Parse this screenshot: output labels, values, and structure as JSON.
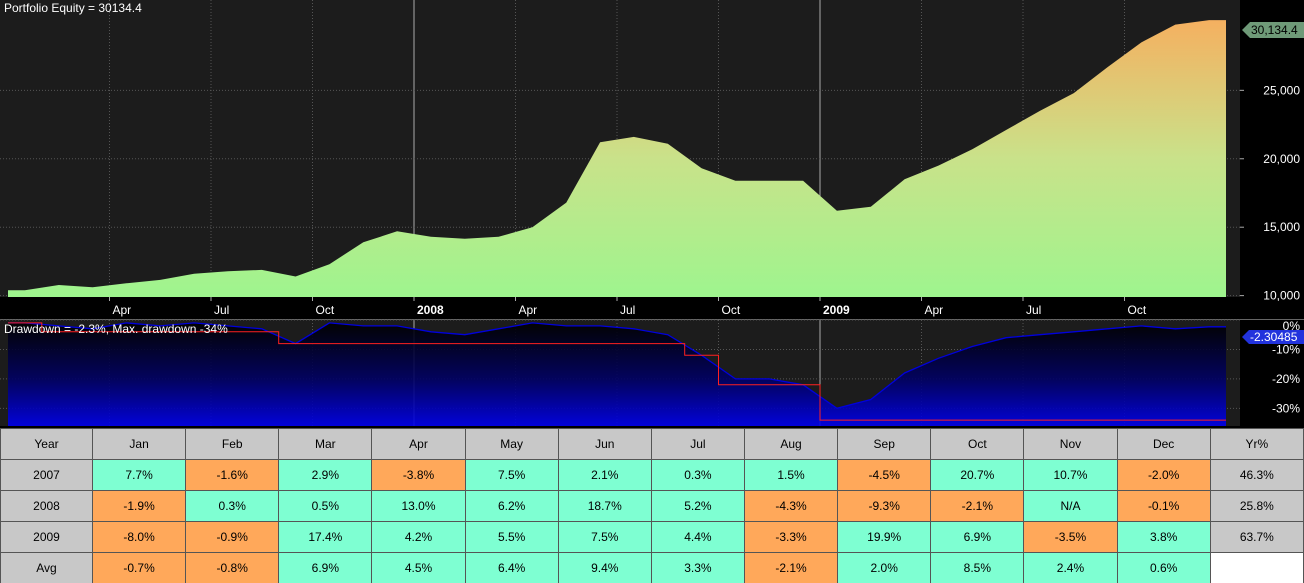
{
  "chart_data": [
    {
      "type": "area",
      "title": "Portfolio Equity = 30134.4",
      "current_value_label": "30,134.4",
      "x_tick_labels": [
        "Apr",
        "Jul",
        "Oct",
        "2008",
        "Apr",
        "Jul",
        "Oct",
        "2009",
        "Apr",
        "Jul",
        "Oct"
      ],
      "y_tick_labels": [
        "10,000",
        "15,000",
        "20,000",
        "25,000"
      ],
      "ylim": [
        9900,
        31600
      ],
      "x": [
        "2007-01",
        "2007-02",
        "2007-03",
        "2007-04",
        "2007-05",
        "2007-06",
        "2007-07",
        "2007-08",
        "2007-09",
        "2007-10",
        "2007-11",
        "2007-12",
        "2008-01",
        "2008-02",
        "2008-03",
        "2008-04",
        "2008-05",
        "2008-06",
        "2008-07",
        "2008-08",
        "2008-09",
        "2008-10",
        "2008-11",
        "2008-12",
        "2009-01",
        "2009-02",
        "2009-03",
        "2009-04",
        "2009-05",
        "2009-06",
        "2009-07",
        "2009-08",
        "2009-09",
        "2009-10",
        "2009-11",
        "2009-12"
      ],
      "values": [
        10400,
        10780,
        10610,
        10900,
        11150,
        11600,
        11780,
        11880,
        11400,
        12300,
        13900,
        14700,
        14300,
        14150,
        14300,
        15000,
        16800,
        21200,
        21600,
        21100,
        19300,
        18400,
        18400,
        18400,
        16200,
        16500,
        18500,
        19500,
        20700,
        22100,
        23500,
        24800,
        26700,
        28500,
        29800,
        30134.4
      ],
      "grid": true,
      "colors": {
        "fill_top": "#f5b060",
        "fill_bottom": "#9ef58e",
        "background": "#1e1e1e",
        "current_marker": "#6f9a78"
      }
    },
    {
      "type": "line",
      "title": "Drawdown = -2.3%, Max. drawdown -34%",
      "current_value_label": "-2.30485",
      "y_tick_labels": [
        "0%",
        "-10%",
        "-20%",
        "-30%"
      ],
      "ylim": [
        -36,
        0
      ],
      "x": [
        "2007-01",
        "2007-02",
        "2007-03",
        "2007-04",
        "2007-05",
        "2007-06",
        "2007-07",
        "2007-08",
        "2007-09",
        "2007-10",
        "2007-11",
        "2007-12",
        "2008-01",
        "2008-02",
        "2008-03",
        "2008-04",
        "2008-05",
        "2008-06",
        "2008-07",
        "2008-08",
        "2008-09",
        "2008-10",
        "2008-11",
        "2008-12",
        "2009-01",
        "2009-02",
        "2009-03",
        "2009-04",
        "2009-05",
        "2009-06",
        "2009-07",
        "2009-08",
        "2009-09",
        "2009-10",
        "2009-11",
        "2009-12"
      ],
      "series": [
        {
          "values": [
            -1,
            -2,
            -3,
            -1,
            -2,
            -1,
            -2,
            -3,
            -8,
            -1,
            -2,
            -2,
            -4,
            -5,
            -3,
            -1,
            -2,
            -2,
            -3,
            -5,
            -12,
            -20,
            -20,
            -22,
            -30,
            -27,
            -18,
            -13,
            -9,
            -6,
            -5,
            -4,
            -3,
            -2,
            -3,
            -2.3
          ]
        },
        {
          "values": [
            -1,
            -4,
            -4,
            -4,
            -4,
            -4,
            -4,
            -4,
            -8,
            -8,
            -8,
            -8,
            -8,
            -8,
            -8,
            -8,
            -8,
            -8,
            -8,
            -8,
            -12,
            -22,
            -22,
            -22,
            -34,
            -34,
            -34,
            -34,
            -34,
            -34,
            -34,
            -34,
            -34,
            -34,
            -34,
            -34
          ]
        }
      ],
      "colors": {
        "drawdown_line": "#0000dd",
        "max_drawdown_line": "#ff2020",
        "current_marker": "#2233dd"
      }
    }
  ],
  "table": {
    "headers": [
      "Year",
      "Jan",
      "Feb",
      "Mar",
      "Apr",
      "May",
      "Jun",
      "Jul",
      "Aug",
      "Sep",
      "Oct",
      "Nov",
      "Dec",
      "Yr%"
    ],
    "rows": [
      {
        "label": "2007",
        "cells": [
          "7.7%",
          "-1.6%",
          "2.9%",
          "-3.8%",
          "7.5%",
          "2.1%",
          "0.3%",
          "1.5%",
          "-4.5%",
          "20.7%",
          "10.7%",
          "-2.0%"
        ],
        "yr": "46.3%"
      },
      {
        "label": "2008",
        "cells": [
          "-1.9%",
          "0.3%",
          "0.5%",
          "13.0%",
          "6.2%",
          "18.7%",
          "5.2%",
          "-4.3%",
          "-9.3%",
          "-2.1%",
          "N/A",
          "-0.1%"
        ],
        "yr": "25.8%"
      },
      {
        "label": "2009",
        "cells": [
          "-8.0%",
          "-0.9%",
          "17.4%",
          "4.2%",
          "5.5%",
          "7.5%",
          "4.4%",
          "-3.3%",
          "19.9%",
          "6.9%",
          "-3.5%",
          "3.8%"
        ],
        "yr": "63.7%"
      },
      {
        "label": "Avg",
        "cells": [
          "-0.7%",
          "-0.8%",
          "6.9%",
          "4.5%",
          "6.4%",
          "9.4%",
          "3.3%",
          "-2.1%",
          "2.0%",
          "8.5%",
          "2.4%",
          "0.6%"
        ],
        "yr": ""
      }
    ],
    "colors": {
      "positive": "#7effd2",
      "negative": "#ffa85a",
      "neutral": "#c8c8c8"
    }
  }
}
